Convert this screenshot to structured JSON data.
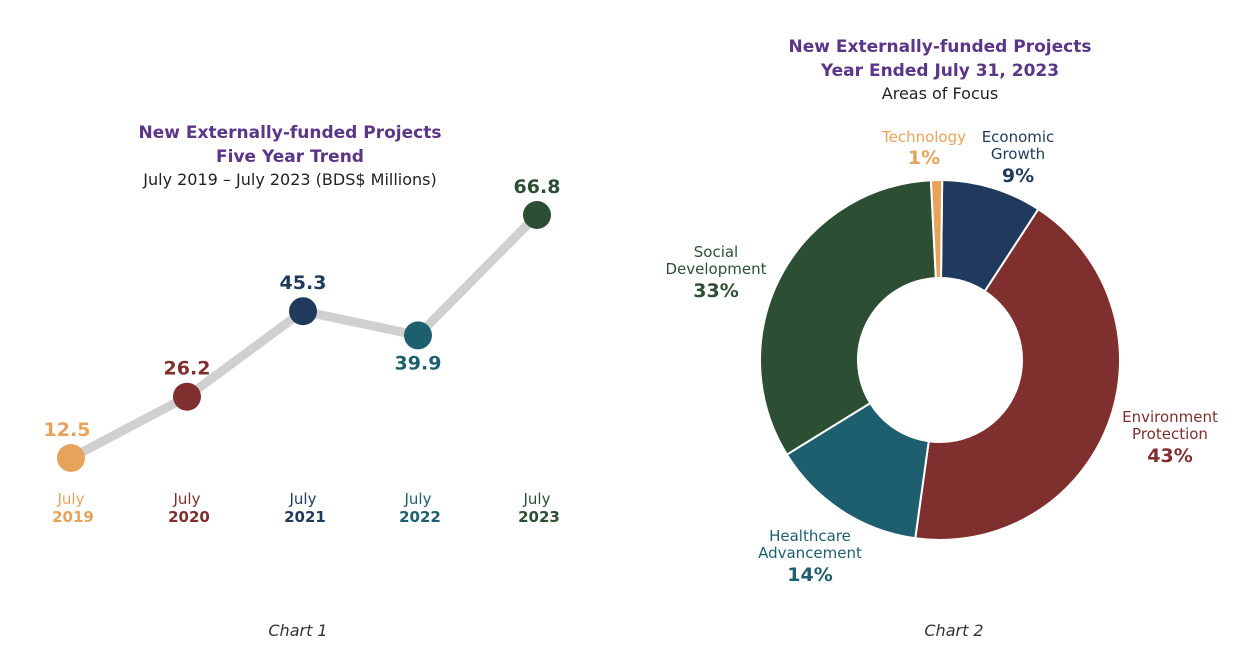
{
  "chart_data": [
    {
      "type": "line",
      "title": "New Externally-funded Projects",
      "subtitle": "Five Year Trend",
      "subtitle2": "July 2019 – July 2023 (BDS$ Millions)",
      "categories": [
        {
          "month": "July",
          "year": "2019"
        },
        {
          "month": "July",
          "year": "2020"
        },
        {
          "month": "July",
          "year": "2021"
        },
        {
          "month": "July",
          "year": "2022"
        },
        {
          "month": "July",
          "year": "2023"
        }
      ],
      "values": [
        12.5,
        26.2,
        45.3,
        39.9,
        66.8
      ],
      "value_labels": [
        "12.5",
        "26.2",
        "45.3",
        "39.9",
        "66.8"
      ],
      "colors": [
        "#e8a35b",
        "#7f2f2d",
        "#1f3a5c",
        "#1d5f6e",
        "#2c4f34"
      ],
      "line_color": "#d0d0d0",
      "ylim": [
        0,
        75
      ],
      "caption": "Chart 1"
    },
    {
      "type": "pie",
      "title": "New Externally-funded Projects",
      "subtitle": "Year Ended July 31, 2023",
      "subtitle2": "Areas of Focus",
      "slices": [
        {
          "label_lines": [
            "Economic",
            "Growth"
          ],
          "value": 9,
          "pct": "9%",
          "color": "#1f3a5c"
        },
        {
          "label_lines": [
            "Environment",
            "Protection"
          ],
          "value": 43,
          "pct": "43%",
          "color": "#7f2f2d"
        },
        {
          "label_lines": [
            "Healthcare",
            "Advancement"
          ],
          "value": 14,
          "pct": "14%",
          "color": "#1d5f6e"
        },
        {
          "label_lines": [
            "Social",
            "Development"
          ],
          "value": 33,
          "pct": "33%",
          "color": "#2c4f34"
        },
        {
          "label_lines": [
            "Technology"
          ],
          "value": 1,
          "pct": "1%",
          "color": "#e8a35b"
        }
      ],
      "donut": true,
      "caption": "Chart 2"
    }
  ]
}
